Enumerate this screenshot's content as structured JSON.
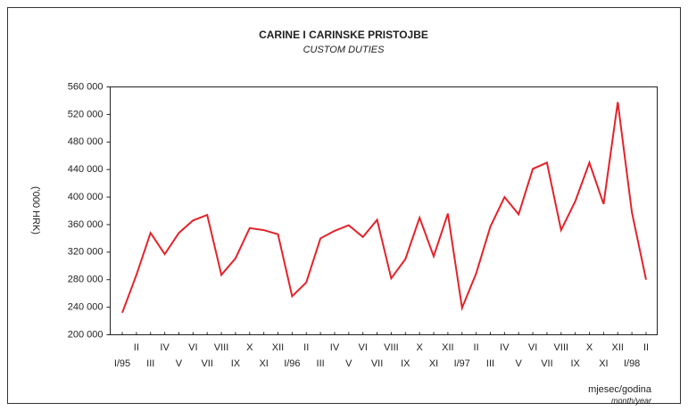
{
  "chart_data": {
    "type": "line",
    "title": "CARINE I CARINSKE PRISTOJBE",
    "subtitle": "CUSTOM DUTIES",
    "ylabel": "('000 HRK)",
    "xlabel": "mjesec/godina",
    "xlabel_sub": "month/year",
    "color": "#e3232b",
    "categories": [
      "I/95",
      "II",
      "III",
      "IV",
      "V",
      "VI",
      "VII",
      "VIII",
      "IX",
      "X",
      "XI",
      "XII",
      "I/96",
      "II",
      "III",
      "IV",
      "V",
      "VI",
      "VII",
      "VIII",
      "IX",
      "X",
      "XI",
      "XII",
      "I/97",
      "II",
      "III",
      "IV",
      "V",
      "VI",
      "VII",
      "VIII",
      "IX",
      "X",
      "XI",
      "XII",
      "I/98",
      "II"
    ],
    "values": [
      232000,
      287000,
      348000,
      317000,
      348000,
      366000,
      374000,
      287000,
      311000,
      355000,
      352000,
      346000,
      256000,
      276000,
      340000,
      351000,
      359000,
      342000,
      367000,
      282000,
      310000,
      370000,
      314000,
      376000,
      239000,
      289000,
      357000,
      400000,
      375000,
      441000,
      450000,
      352000,
      394000,
      450000,
      390000,
      538000,
      378000,
      280000
    ],
    "ylim": [
      200000,
      560000
    ],
    "yticks": [
      {
        "value": 200000,
        "label": "200 000"
      },
      {
        "value": 240000,
        "label": "240 000"
      },
      {
        "value": 280000,
        "label": "280 000"
      },
      {
        "value": 320000,
        "label": "320 000"
      },
      {
        "value": 360000,
        "label": "360 000"
      },
      {
        "value": 400000,
        "label": "400 000"
      },
      {
        "value": 440000,
        "label": "440 000"
      },
      {
        "value": 480000,
        "label": "480 000"
      },
      {
        "value": 520000,
        "label": "520 000"
      },
      {
        "value": 560000,
        "label": "560 000"
      }
    ]
  }
}
